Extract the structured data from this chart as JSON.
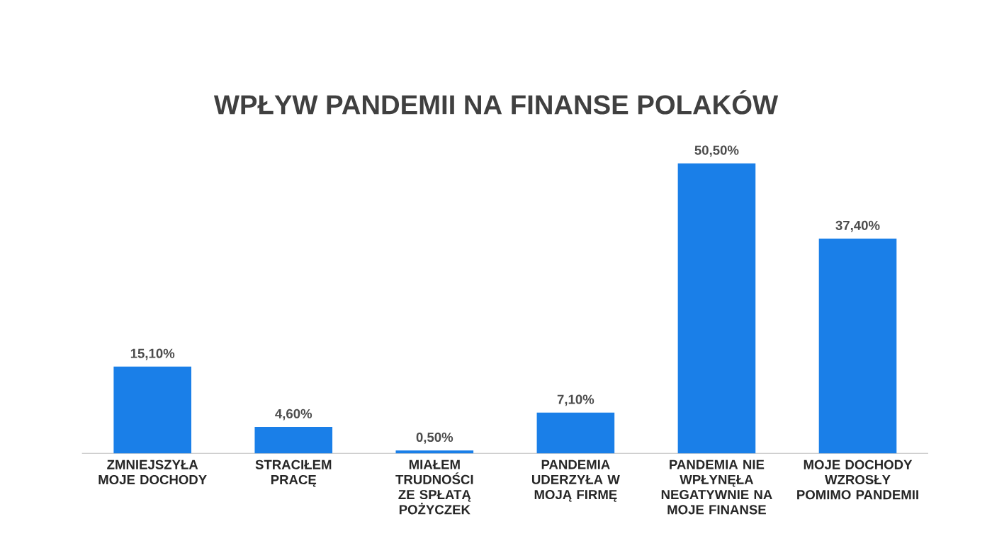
{
  "chart_data": {
    "type": "bar",
    "title": "WPŁYW PANDEMII NA FINANSE POLAKÓW",
    "categories": [
      "ZMNIEJSZYŁA MOJE DOCHODY",
      "STRACIŁEM PRACĘ",
      "MIAŁEM TRUDNOŚCI ZE SPŁATĄ POŻYCZEK",
      "PANDEMIA UDERZYŁA W MOJĄ FIRMĘ",
      "PANDEMIA NIE WPŁYNĘŁA NEGATYWNIE NA MOJE FINANSE",
      "MOJE DOCHODY WZROSŁY POMIMO PANDEMII"
    ],
    "values": [
      15.1,
      4.6,
      0.5,
      7.1,
      50.5,
      37.4
    ],
    "value_labels": [
      "15,10%",
      "4,60%",
      "0,50%",
      "7,10%",
      "50,50%",
      "37,40%"
    ],
    "color": "#1a7fe8"
  }
}
